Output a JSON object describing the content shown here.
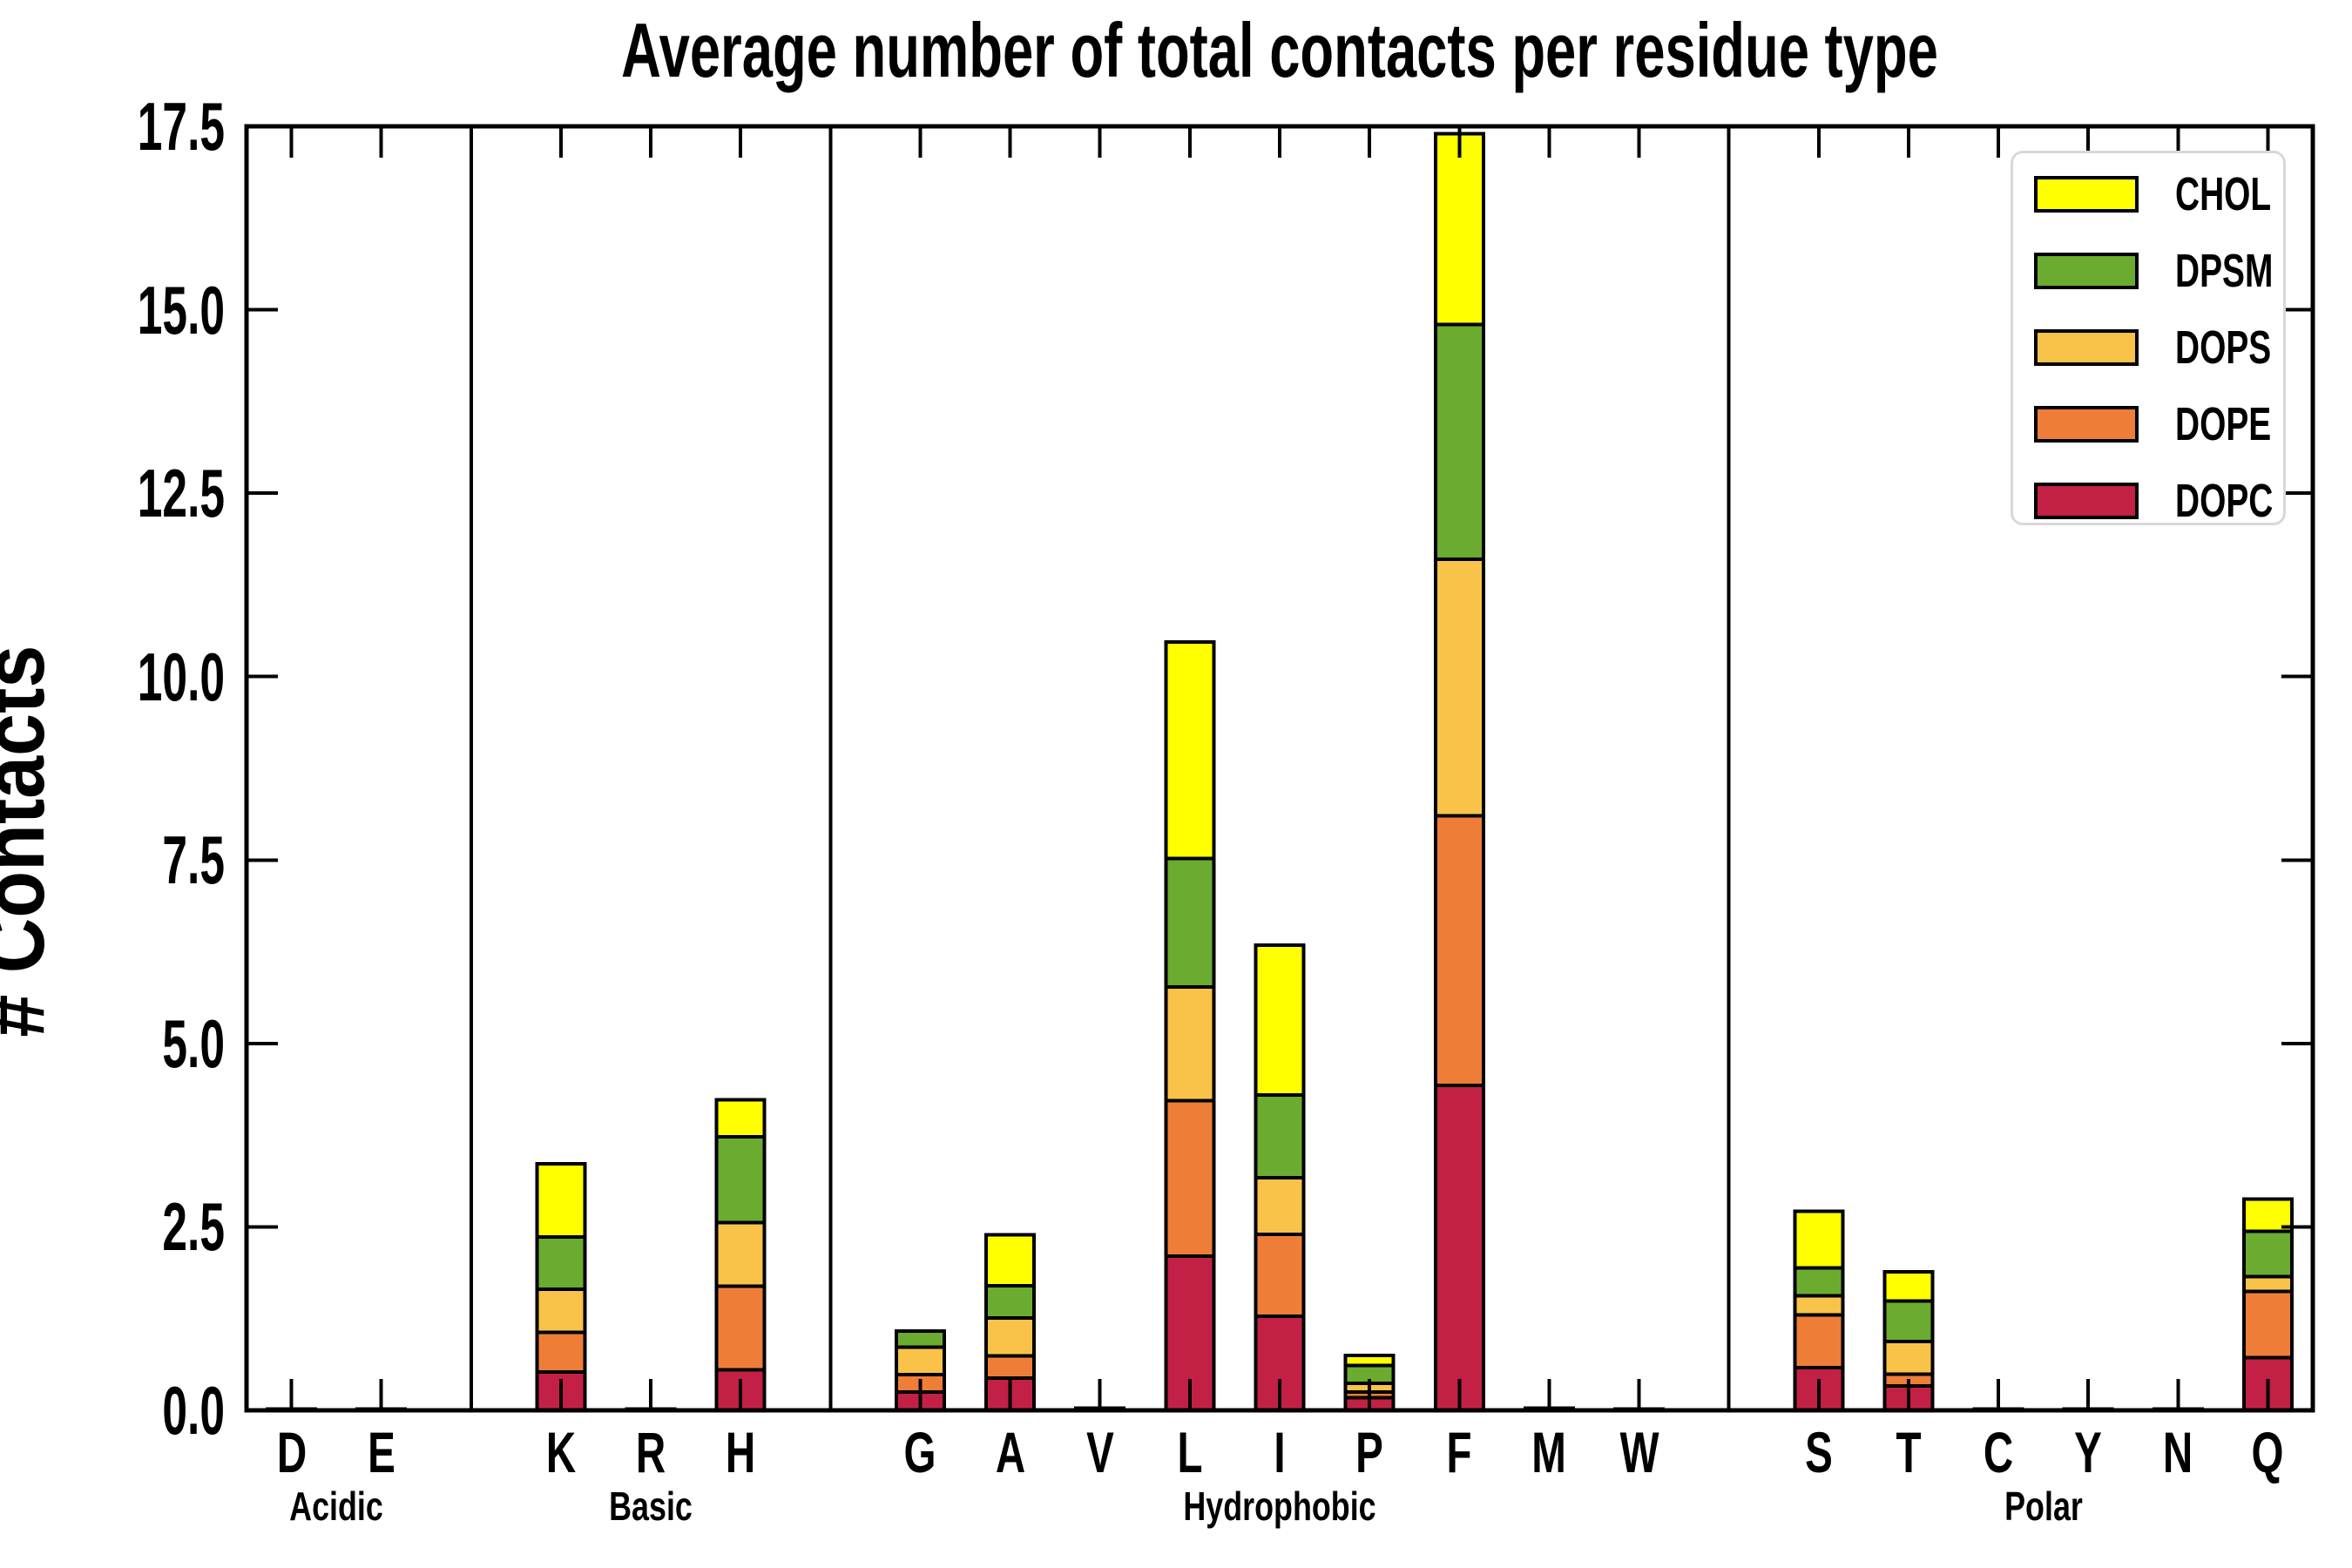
{
  "chart_data": {
    "type": "bar",
    "stacked": true,
    "title": "Average number of total contacts per residue type",
    "ylabel": "# Contacts",
    "xlabel": "",
    "ylim": [
      0,
      17.5
    ],
    "yticks": [
      "0.0",
      "2.5",
      "5.0",
      "7.5",
      "10.0",
      "12.5",
      "15.0",
      "17.5"
    ],
    "grid": false,
    "legend_position": "upper right",
    "background": "#ffffff",
    "frame_color": "#000000",
    "groups": [
      {
        "label": "Acidic",
        "categories": [
          "D",
          "E"
        ]
      },
      {
        "label": "Basic",
        "categories": [
          "K",
          "R",
          "H"
        ]
      },
      {
        "label": "Hydrophobic",
        "categories": [
          "G",
          "A",
          "V",
          "L",
          "I",
          "P",
          "F",
          "M",
          "W"
        ]
      },
      {
        "label": "Polar",
        "categories": [
          "S",
          "T",
          "C",
          "Y",
          "N",
          "Q"
        ]
      }
    ],
    "categories": [
      "D",
      "E",
      "K",
      "R",
      "H",
      "G",
      "A",
      "V",
      "L",
      "I",
      "P",
      "F",
      "M",
      "W",
      "S",
      "T",
      "C",
      "Y",
      "N",
      "Q"
    ],
    "series": [
      {
        "name": "DOPC",
        "color": "#C32046",
        "values": [
          0.02,
          0.02,
          0.52,
          0.02,
          0.55,
          0.25,
          0.44,
          0.03,
          2.1,
          1.28,
          0.17,
          4.43,
          0.03,
          0.02,
          0.58,
          0.33,
          0.02,
          0.02,
          0.02,
          0.72
        ]
      },
      {
        "name": "DOPE",
        "color": "#EE7E37",
        "values": [
          0,
          0,
          0.54,
          0,
          1.14,
          0.24,
          0.3,
          0,
          2.12,
          1.12,
          0.08,
          3.67,
          0,
          0,
          0.72,
          0.16,
          0,
          0,
          0,
          0.9
        ]
      },
      {
        "name": "DOPS",
        "color": "#F9C349",
        "values": [
          0,
          0,
          0.59,
          0,
          0.87,
          0.37,
          0.52,
          0,
          1.55,
          0.77,
          0.12,
          3.5,
          0,
          0,
          0.26,
          0.45,
          0,
          0,
          0,
          0.2
        ]
      },
      {
        "name": "DPSM",
        "color": "#6AAB30",
        "values": [
          0,
          0,
          0.71,
          0,
          1.17,
          0.22,
          0.44,
          0,
          1.75,
          1.13,
          0.24,
          3.2,
          0,
          0,
          0.38,
          0.55,
          0,
          0,
          0,
          0.62
        ]
      },
      {
        "name": "CHOL",
        "color": "#FFFF00",
        "values": [
          0,
          0,
          1.0,
          0,
          0.5,
          0,
          0.69,
          0,
          2.95,
          2.04,
          0.14,
          2.6,
          0,
          0,
          0.77,
          0.4,
          0,
          0,
          0,
          0.44
        ]
      }
    ],
    "legend": [
      {
        "label": "CHOL",
        "color": "#FFFF00"
      },
      {
        "label": "DPSM",
        "color": "#6AAB30"
      },
      {
        "label": "DOPS",
        "color": "#F9C349"
      },
      {
        "label": "DOPE",
        "color": "#EE7E37"
      },
      {
        "label": "DOPC",
        "color": "#C32046"
      }
    ]
  }
}
